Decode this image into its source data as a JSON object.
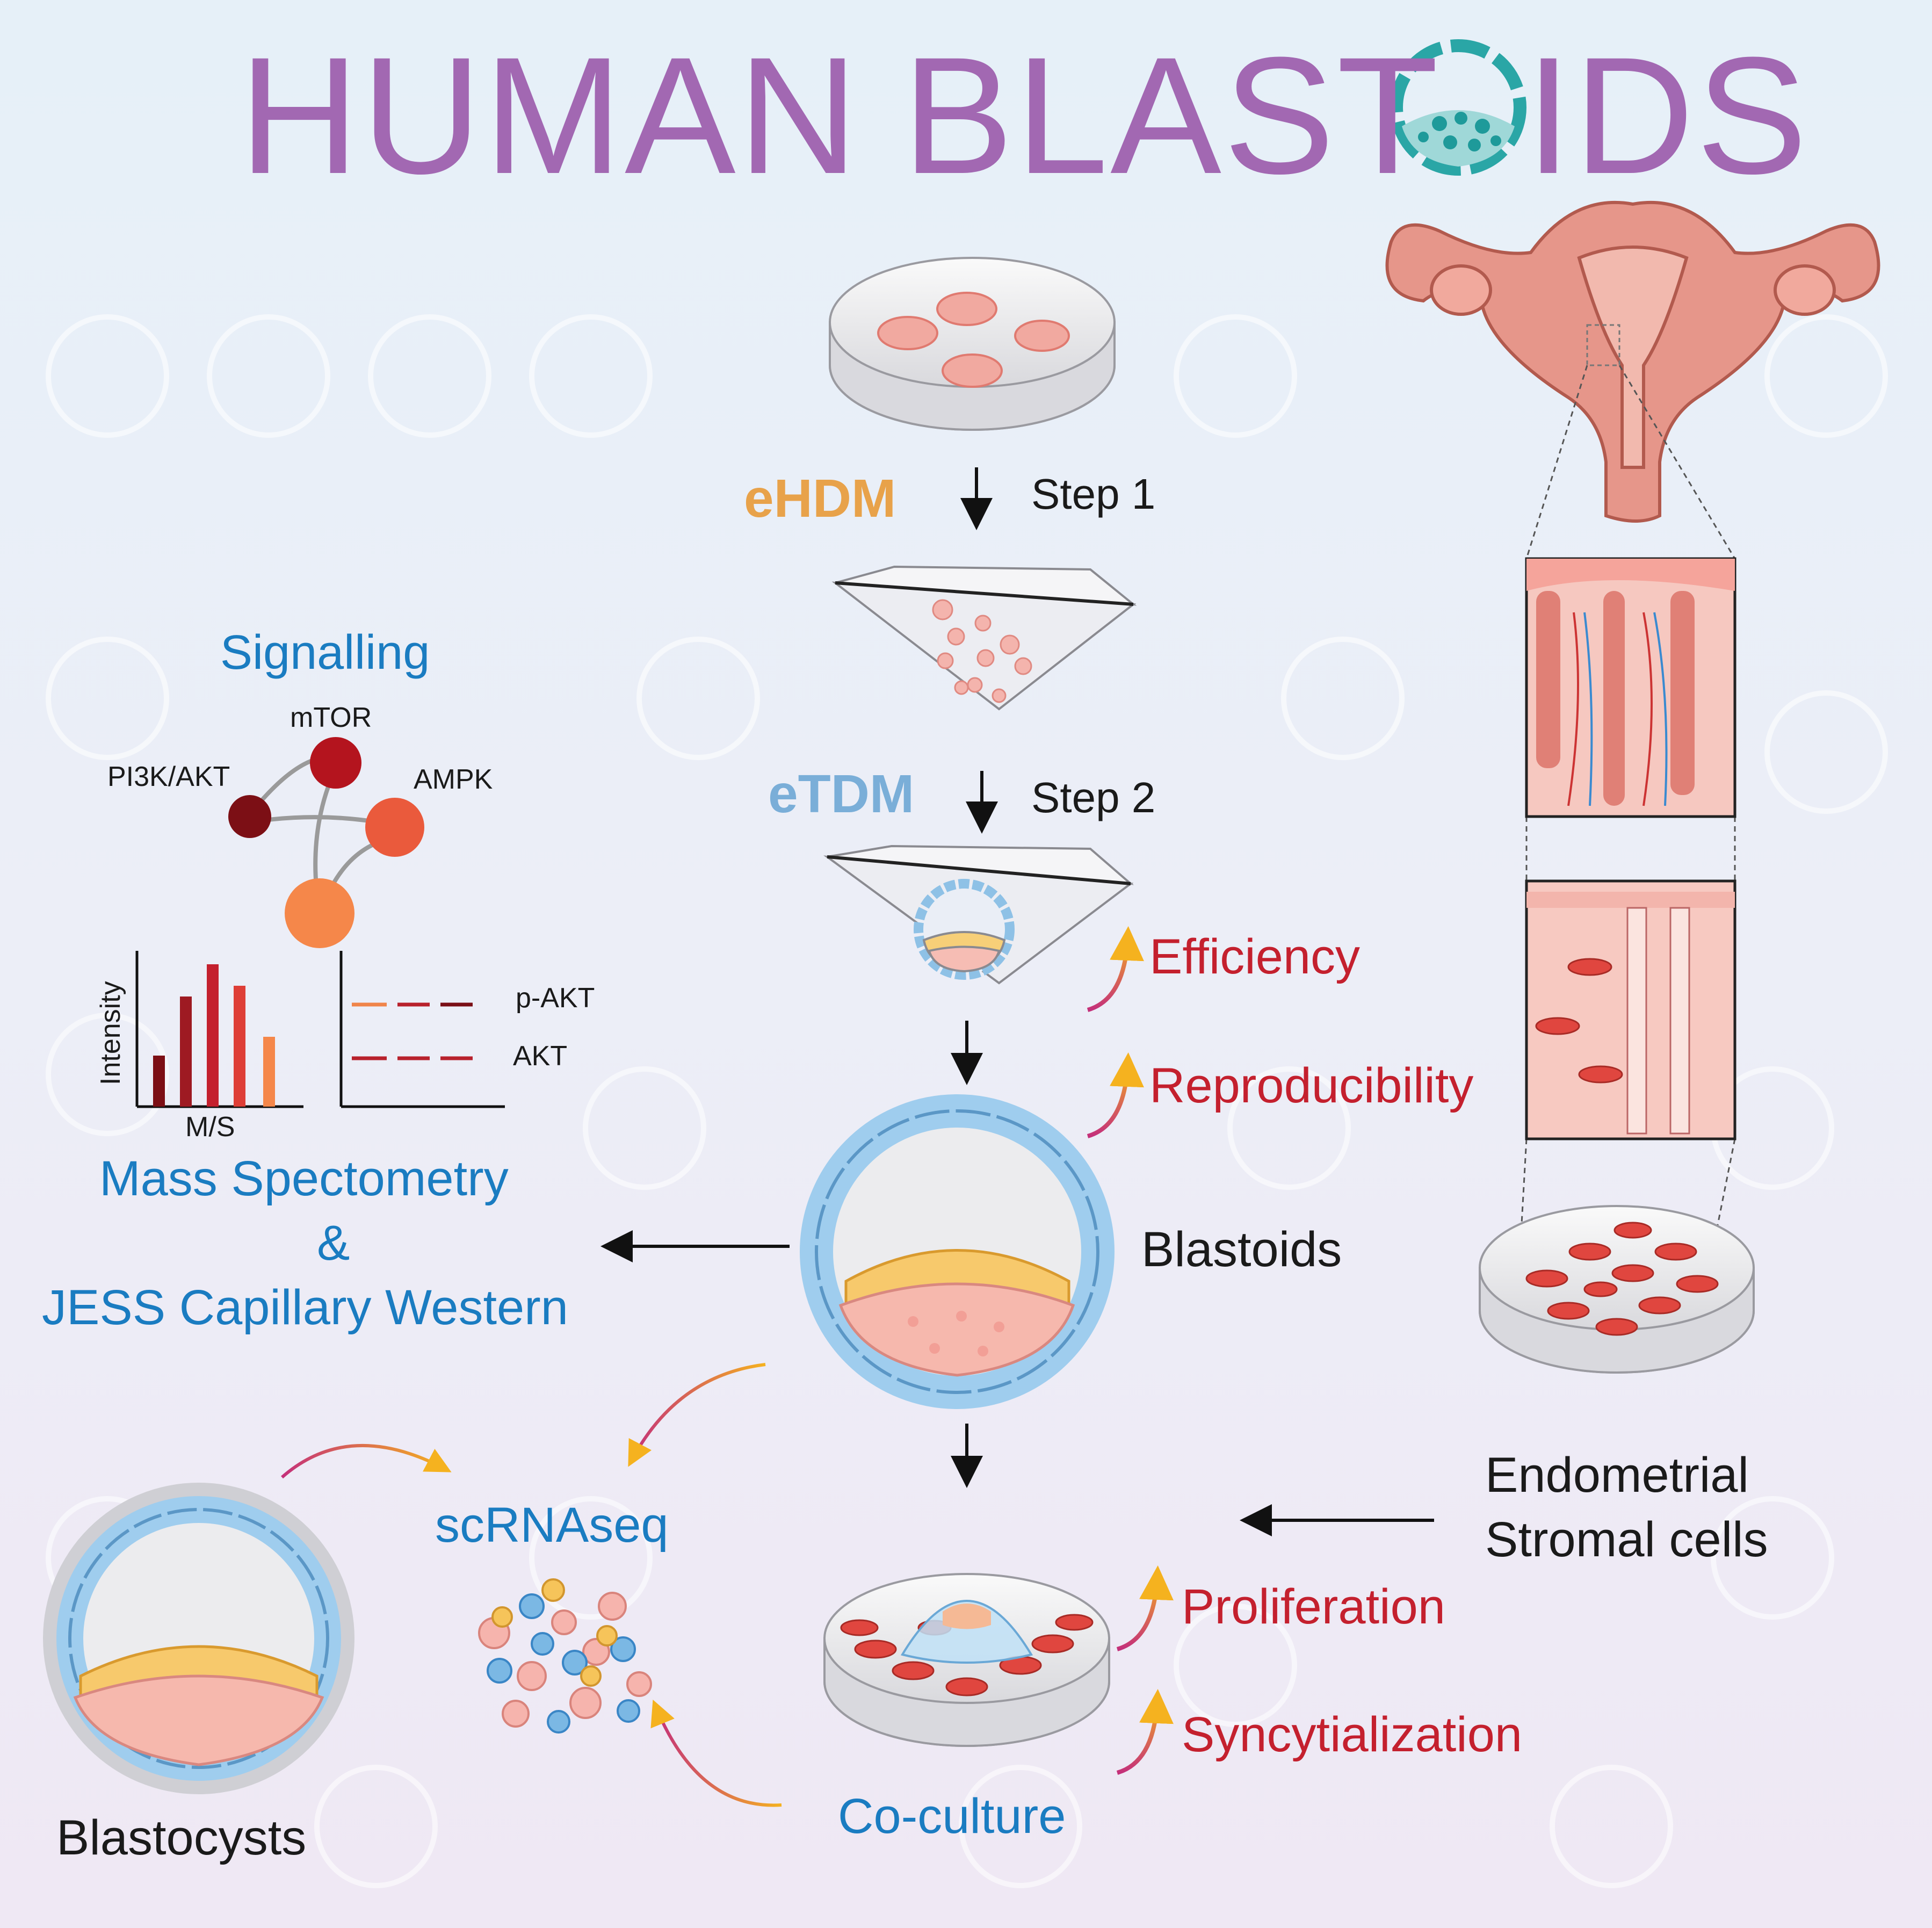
{
  "title": {
    "part1": "HUMAN",
    "part2": "BLAST",
    "part3": "IDS"
  },
  "steps": {
    "medium1": "eHDM",
    "step1": "Step 1",
    "medium2": "eTDM",
    "step2": "Step 2"
  },
  "signalling": {
    "heading": "Signalling",
    "nodes": [
      "mTOR",
      "PI3K/AKT",
      "AMPK"
    ]
  },
  "mass_spec": {
    "y_axis": "Intensity",
    "x_axis": "M/S",
    "legend": [
      "p-AKT",
      "AKT"
    ],
    "label_line1": "Mass Spectometry",
    "label_line2": "&",
    "label_line3": "JESS Capillary Western"
  },
  "outcomes": {
    "efficiency": "Efficiency",
    "reproducibility": "Reproducibility",
    "proliferation": "Proliferation",
    "syncytialization": "Syncytialization"
  },
  "blastoids_label": "Blastoids",
  "stromal": {
    "line1": "Endometrial",
    "line2": "Stromal cells"
  },
  "scrnaseq_label": "scRNAseq",
  "blastocysts_label": "Blastocysts",
  "coculture_label": "Co-culture",
  "colors": {
    "title": "#a268b2",
    "ehdm": "#e8a24a",
    "etdm": "#7aaed8",
    "blue_text": "#1a7cc1",
    "red_text": "#c4202e"
  }
}
